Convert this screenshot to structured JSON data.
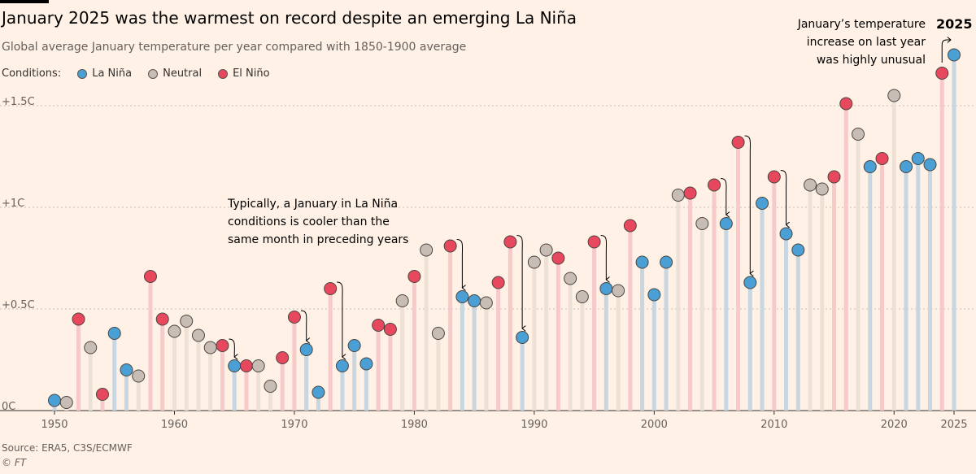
{
  "header": {
    "title": "January 2025 was the warmest on record despite an emerging La Niña",
    "subtitle": "Global average January temperature per year compared with 1850-1900 average"
  },
  "legend": {
    "label": "Conditions:",
    "items": [
      {
        "name": "La Niña",
        "color": "#4a9fd4"
      },
      {
        "name": "Neutral",
        "color": "#c8bdb5"
      },
      {
        "name": "El Niño",
        "color": "#e8485e"
      }
    ]
  },
  "annotations": {
    "la_nina_note": "Typically, a January in La Niña\nconditions is cooler than the\nsame month in preceding years",
    "jan2025_note": "January’s temperature\nincrease on last year\nwas highly unusual",
    "highlight_label": "2025"
  },
  "footer": {
    "source": "Source: ERA5, C3S/ECMWF",
    "credit": "© FT"
  },
  "colors": {
    "background": "#fff1e5",
    "la_nina": "#4a9fd4",
    "neutral": "#c8bdb5",
    "el_nino": "#e8485e",
    "stem_la_nina": "#c7d6e0",
    "stem_neutral": "#ede0d4",
    "stem_el_nino": "#f7c9c9",
    "grid": "#c8beb3"
  },
  "chart_data": {
    "type": "scatter",
    "title": "January 2025 was the warmest on record despite an emerging La Niña",
    "subtitle": "Global average January temperature per year compared with 1850-1900 average",
    "xlabel": "",
    "ylabel": "",
    "xlim": [
      1950,
      2025
    ],
    "ylim": [
      0,
      1.7
    ],
    "x_ticks": [
      1950,
      1960,
      1970,
      1980,
      1990,
      2000,
      2010,
      2020,
      2025
    ],
    "x_tick_labels": [
      "1950",
      "1960",
      "1970",
      "1980",
      "1990",
      "2000",
      "2010",
      "2020",
      "2025"
    ],
    "y_ticks": [
      0,
      0.5,
      1,
      1.5
    ],
    "y_tick_labels": [
      "0C",
      "+0.5C",
      "+1C",
      "+1.5C"
    ],
    "grid": true,
    "legend_position": "top-left",
    "conditions_key": {
      "L": "La Niña",
      "N": "Neutral",
      "E": "El Niño"
    },
    "points": [
      {
        "year": 1950,
        "value": 0.05,
        "condition": "L"
      },
      {
        "year": 1951,
        "value": 0.04,
        "condition": "N"
      },
      {
        "year": 1952,
        "value": 0.45,
        "condition": "E"
      },
      {
        "year": 1953,
        "value": 0.31,
        "condition": "N"
      },
      {
        "year": 1954,
        "value": 0.08,
        "condition": "E"
      },
      {
        "year": 1955,
        "value": 0.38,
        "condition": "L"
      },
      {
        "year": 1956,
        "value": 0.2,
        "condition": "L"
      },
      {
        "year": 1957,
        "value": 0.17,
        "condition": "N"
      },
      {
        "year": 1958,
        "value": 0.66,
        "condition": "E"
      },
      {
        "year": 1959,
        "value": 0.45,
        "condition": "E"
      },
      {
        "year": 1960,
        "value": 0.39,
        "condition": "N"
      },
      {
        "year": 1961,
        "value": 0.44,
        "condition": "N"
      },
      {
        "year": 1962,
        "value": 0.37,
        "condition": "N"
      },
      {
        "year": 1963,
        "value": 0.31,
        "condition": "N"
      },
      {
        "year": 1964,
        "value": 0.32,
        "condition": "E"
      },
      {
        "year": 1965,
        "value": 0.22,
        "condition": "L"
      },
      {
        "year": 1966,
        "value": 0.22,
        "condition": "E"
      },
      {
        "year": 1967,
        "value": 0.22,
        "condition": "N"
      },
      {
        "year": 1968,
        "value": 0.12,
        "condition": "N"
      },
      {
        "year": 1969,
        "value": 0.26,
        "condition": "E"
      },
      {
        "year": 1970,
        "value": 0.46,
        "condition": "E"
      },
      {
        "year": 1971,
        "value": 0.3,
        "condition": "L"
      },
      {
        "year": 1972,
        "value": 0.09,
        "condition": "L"
      },
      {
        "year": 1973,
        "value": 0.6,
        "condition": "E"
      },
      {
        "year": 1974,
        "value": 0.22,
        "condition": "L"
      },
      {
        "year": 1975,
        "value": 0.32,
        "condition": "L"
      },
      {
        "year": 1976,
        "value": 0.23,
        "condition": "L"
      },
      {
        "year": 1977,
        "value": 0.42,
        "condition": "E"
      },
      {
        "year": 1978,
        "value": 0.4,
        "condition": "E"
      },
      {
        "year": 1979,
        "value": 0.54,
        "condition": "N"
      },
      {
        "year": 1980,
        "value": 0.66,
        "condition": "E"
      },
      {
        "year": 1981,
        "value": 0.79,
        "condition": "N"
      },
      {
        "year": 1982,
        "value": 0.38,
        "condition": "N"
      },
      {
        "year": 1983,
        "value": 0.81,
        "condition": "E"
      },
      {
        "year": 1984,
        "value": 0.56,
        "condition": "L"
      },
      {
        "year": 1985,
        "value": 0.54,
        "condition": "L"
      },
      {
        "year": 1986,
        "value": 0.53,
        "condition": "N"
      },
      {
        "year": 1987,
        "value": 0.63,
        "condition": "E"
      },
      {
        "year": 1988,
        "value": 0.83,
        "condition": "E"
      },
      {
        "year": 1989,
        "value": 0.36,
        "condition": "L"
      },
      {
        "year": 1990,
        "value": 0.73,
        "condition": "N"
      },
      {
        "year": 1991,
        "value": 0.79,
        "condition": "N"
      },
      {
        "year": 1992,
        "value": 0.75,
        "condition": "E"
      },
      {
        "year": 1993,
        "value": 0.65,
        "condition": "N"
      },
      {
        "year": 1994,
        "value": 0.56,
        "condition": "N"
      },
      {
        "year": 1995,
        "value": 0.83,
        "condition": "E"
      },
      {
        "year": 1996,
        "value": 0.6,
        "condition": "L"
      },
      {
        "year": 1997,
        "value": 0.59,
        "condition": "N"
      },
      {
        "year": 1998,
        "value": 0.91,
        "condition": "E"
      },
      {
        "year": 1999,
        "value": 0.73,
        "condition": "L"
      },
      {
        "year": 2000,
        "value": 0.57,
        "condition": "L"
      },
      {
        "year": 2001,
        "value": 0.73,
        "condition": "L"
      },
      {
        "year": 2002,
        "value": 1.06,
        "condition": "N"
      },
      {
        "year": 2003,
        "value": 1.07,
        "condition": "E"
      },
      {
        "year": 2004,
        "value": 0.92,
        "condition": "N"
      },
      {
        "year": 2005,
        "value": 1.11,
        "condition": "E"
      },
      {
        "year": 2006,
        "value": 0.92,
        "condition": "L"
      },
      {
        "year": 2007,
        "value": 1.32,
        "condition": "E"
      },
      {
        "year": 2008,
        "value": 0.63,
        "condition": "L"
      },
      {
        "year": 2009,
        "value": 1.02,
        "condition": "L"
      },
      {
        "year": 2010,
        "value": 1.15,
        "condition": "E"
      },
      {
        "year": 2011,
        "value": 0.87,
        "condition": "L"
      },
      {
        "year": 2012,
        "value": 0.79,
        "condition": "L"
      },
      {
        "year": 2013,
        "value": 1.11,
        "condition": "N"
      },
      {
        "year": 2014,
        "value": 1.09,
        "condition": "N"
      },
      {
        "year": 2015,
        "value": 1.15,
        "condition": "E"
      },
      {
        "year": 2016,
        "value": 1.51,
        "condition": "E"
      },
      {
        "year": 2017,
        "value": 1.36,
        "condition": "N"
      },
      {
        "year": 2018,
        "value": 1.2,
        "condition": "L"
      },
      {
        "year": 2019,
        "value": 1.24,
        "condition": "E"
      },
      {
        "year": 2020,
        "value": 1.55,
        "condition": "N"
      },
      {
        "year": 2021,
        "value": 1.2,
        "condition": "L"
      },
      {
        "year": 2022,
        "value": 1.24,
        "condition": "L"
      },
      {
        "year": 2023,
        "value": 1.21,
        "condition": "L"
      },
      {
        "year": 2024,
        "value": 1.66,
        "condition": "E"
      },
      {
        "year": 2025,
        "value": 1.75,
        "condition": "L"
      }
    ],
    "arrow_years": [
      1965,
      1971,
      1974,
      1984,
      1989,
      1996,
      2006,
      2008,
      2011
    ]
  }
}
